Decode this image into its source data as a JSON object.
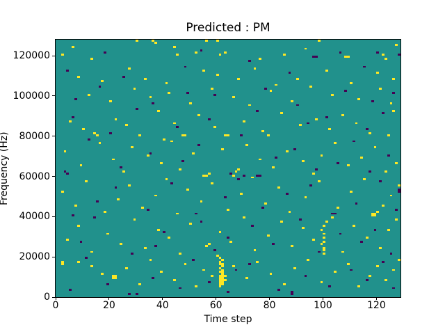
{
  "title": "Predicted : PM",
  "chart_data": {
    "type": "heatmap",
    "title": "Predicted : PM",
    "xlabel": "Time step",
    "ylabel": "Frequency (Hz)",
    "xlim": [
      0,
      129
    ],
    "ylim": [
      0,
      128000
    ],
    "x_ticks": [
      0,
      20,
      40,
      60,
      80,
      100,
      120
    ],
    "y_ticks": [
      0,
      20000,
      40000,
      60000,
      80000,
      100000,
      120000
    ],
    "freq_bin_hz": 1000,
    "grid": "off",
    "legend": "none",
    "colors": {
      "background": "#21918c",
      "high": "#fde725",
      "low": "#440154",
      "axes_text": "#000000"
    },
    "high_cells": [
      [
        2,
        120
      ],
      [
        6,
        124
      ],
      [
        13,
        118
      ],
      [
        30,
        127
      ],
      [
        36,
        127
      ],
      [
        37,
        126
      ],
      [
        44,
        124
      ],
      [
        45,
        120
      ],
      [
        52,
        121
      ],
      [
        56,
        127
      ],
      [
        60,
        127
      ],
      [
        61,
        120
      ],
      [
        63,
        121
      ],
      [
        76,
        118
      ],
      [
        85,
        120
      ],
      [
        93,
        123
      ],
      [
        98,
        127
      ],
      [
        108,
        119
      ],
      [
        109,
        119
      ],
      [
        122,
        120
      ],
      [
        123,
        118
      ],
      [
        127,
        125
      ],
      [
        8,
        109
      ],
      [
        17,
        107
      ],
      [
        27,
        113
      ],
      [
        33,
        108
      ],
      [
        41,
        106
      ],
      [
        55,
        112
      ],
      [
        60,
        110
      ],
      [
        68,
        108
      ],
      [
        74,
        113
      ],
      [
        82,
        105
      ],
      [
        90,
        108
      ],
      [
        101,
        112
      ],
      [
        110,
        106
      ],
      [
        120,
        111
      ],
      [
        126,
        108
      ],
      [
        12,
        100
      ],
      [
        20,
        97
      ],
      [
        29,
        103
      ],
      [
        35,
        99
      ],
      [
        42,
        101
      ],
      [
        50,
        96
      ],
      [
        58,
        103
      ],
      [
        66,
        99
      ],
      [
        72,
        95
      ],
      [
        80,
        102
      ],
      [
        88,
        97
      ],
      [
        95,
        104
      ],
      [
        103,
        100
      ],
      [
        113,
        98
      ],
      [
        121,
        103
      ],
      [
        125,
        96
      ],
      [
        5,
        87
      ],
      [
        10,
        83
      ],
      [
        14,
        81
      ],
      [
        15,
        80
      ],
      [
        22,
        88
      ],
      [
        26,
        85
      ],
      [
        31,
        80
      ],
      [
        38,
        92
      ],
      [
        40,
        78
      ],
      [
        44,
        86
      ],
      [
        47,
        80
      ],
      [
        48,
        80
      ],
      [
        53,
        90
      ],
      [
        59,
        84
      ],
      [
        63,
        80
      ],
      [
        64,
        80
      ],
      [
        70,
        87
      ],
      [
        77,
        82
      ],
      [
        79,
        80
      ],
      [
        84,
        91
      ],
      [
        91,
        85
      ],
      [
        97,
        88
      ],
      [
        102,
        83
      ],
      [
        107,
        90
      ],
      [
        112,
        86
      ],
      [
        117,
        81
      ],
      [
        124,
        80
      ],
      [
        126,
        92
      ],
      [
        3,
        72
      ],
      [
        9,
        65
      ],
      [
        16,
        76
      ],
      [
        21,
        68
      ],
      [
        25,
        62
      ],
      [
        28,
        74
      ],
      [
        34,
        70
      ],
      [
        39,
        66
      ],
      [
        43,
        77
      ],
      [
        46,
        63
      ],
      [
        51,
        71
      ],
      [
        55,
        60
      ],
      [
        56,
        60
      ],
      [
        57,
        61
      ],
      [
        62,
        73
      ],
      [
        66,
        60
      ],
      [
        67,
        62
      ],
      [
        68,
        63
      ],
      [
        71,
        75
      ],
      [
        76,
        68
      ],
      [
        81,
        64
      ],
      [
        86,
        72
      ],
      [
        92,
        67
      ],
      [
        96,
        61
      ],
      [
        99,
        70
      ],
      [
        104,
        76
      ],
      [
        109,
        65
      ],
      [
        114,
        69
      ],
      [
        119,
        74
      ],
      [
        123,
        62
      ],
      [
        127,
        66
      ],
      [
        2,
        52
      ],
      [
        7,
        45
      ],
      [
        11,
        57
      ],
      [
        18,
        42
      ],
      [
        23,
        48
      ],
      [
        27,
        55
      ],
      [
        32,
        44
      ],
      [
        37,
        50
      ],
      [
        41,
        58
      ],
      [
        45,
        41
      ],
      [
        49,
        53
      ],
      [
        54,
        47
      ],
      [
        58,
        56
      ],
      [
        64,
        43
      ],
      [
        69,
        51
      ],
      [
        73,
        59
      ],
      [
        78,
        46
      ],
      [
        83,
        54
      ],
      [
        87,
        42
      ],
      [
        93,
        49
      ],
      [
        98,
        57
      ],
      [
        105,
        44
      ],
      [
        110,
        52
      ],
      [
        115,
        58
      ],
      [
        118,
        40
      ],
      [
        118,
        41
      ],
      [
        119,
        40
      ],
      [
        119,
        41
      ],
      [
        120,
        42
      ],
      [
        122,
        45
      ],
      [
        125,
        50
      ],
      [
        128,
        55
      ],
      [
        4,
        28
      ],
      [
        8,
        35
      ],
      [
        13,
        22
      ],
      [
        19,
        31
      ],
      [
        24,
        26
      ],
      [
        29,
        38
      ],
      [
        33,
        24
      ],
      [
        38,
        33
      ],
      [
        42,
        29
      ],
      [
        46,
        21
      ],
      [
        50,
        36
      ],
      [
        56,
        25
      ],
      [
        57,
        26
      ],
      [
        61,
        32
      ],
      [
        65,
        27
      ],
      [
        70,
        39
      ],
      [
        74,
        23
      ],
      [
        79,
        30
      ],
      [
        84,
        37
      ],
      [
        88,
        25
      ],
      [
        92,
        34
      ],
      [
        96,
        28
      ],
      [
        99,
        26
      ],
      [
        99,
        33
      ],
      [
        100,
        21
      ],
      [
        100,
        23
      ],
      [
        100,
        24
      ],
      [
        100,
        27
      ],
      [
        100,
        29
      ],
      [
        100,
        31
      ],
      [
        100,
        35
      ],
      [
        101,
        37
      ],
      [
        103,
        39
      ],
      [
        107,
        22
      ],
      [
        111,
        35
      ],
      [
        116,
        29
      ],
      [
        121,
        24
      ],
      [
        124,
        33
      ],
      [
        127,
        38
      ],
      [
        2,
        16
      ],
      [
        2,
        17
      ],
      [
        8,
        17
      ],
      [
        13,
        15
      ],
      [
        17,
        11
      ],
      [
        21,
        9
      ],
      [
        21,
        10
      ],
      [
        22,
        9
      ],
      [
        22,
        10
      ],
      [
        26,
        14
      ],
      [
        31,
        6
      ],
      [
        35,
        18
      ],
      [
        39,
        12
      ],
      [
        44,
        8
      ],
      [
        48,
        16
      ],
      [
        52,
        5
      ],
      [
        55,
        13
      ],
      [
        58,
        10
      ],
      [
        60,
        20
      ],
      [
        61,
        5
      ],
      [
        61,
        6
      ],
      [
        61,
        7
      ],
      [
        61,
        8
      ],
      [
        61,
        9
      ],
      [
        61,
        10
      ],
      [
        61,
        12
      ],
      [
        61,
        14
      ],
      [
        61,
        16
      ],
      [
        61,
        17
      ],
      [
        61,
        19
      ],
      [
        62,
        6
      ],
      [
        62,
        7
      ],
      [
        62,
        8
      ],
      [
        62,
        9
      ],
      [
        62,
        10
      ],
      [
        62,
        11
      ],
      [
        62,
        12
      ],
      [
        62,
        13
      ],
      [
        62,
        15
      ],
      [
        62,
        16
      ],
      [
        62,
        18
      ],
      [
        63,
        8
      ],
      [
        63,
        10
      ],
      [
        66,
        15
      ],
      [
        71,
        9
      ],
      [
        75,
        17
      ],
      [
        80,
        11
      ],
      [
        85,
        6
      ],
      [
        89,
        14
      ],
      [
        94,
        18
      ],
      [
        99,
        7
      ],
      [
        104,
        12
      ],
      [
        109,
        16
      ],
      [
        113,
        5
      ],
      [
        117,
        10
      ],
      [
        120,
        15
      ],
      [
        123,
        8
      ],
      [
        126,
        13
      ],
      [
        128,
        18
      ]
    ],
    "low_cells": [
      [
        96,
        119
      ],
      [
        97,
        119
      ],
      [
        4,
        112
      ],
      [
        18,
        121
      ],
      [
        25,
        109
      ],
      [
        48,
        114
      ],
      [
        54,
        122
      ],
      [
        72,
        117
      ],
      [
        87,
        111
      ],
      [
        106,
        121
      ],
      [
        115,
        114
      ],
      [
        120,
        121
      ],
      [
        128,
        120
      ],
      [
        7,
        98
      ],
      [
        16,
        104
      ],
      [
        36,
        96
      ],
      [
        49,
        101
      ],
      [
        59,
        100
      ],
      [
        78,
        103
      ],
      [
        90,
        95
      ],
      [
        108,
        102
      ],
      [
        118,
        97
      ],
      [
        126,
        101
      ],
      [
        6,
        89
      ],
      [
        20,
        81
      ],
      [
        30,
        93
      ],
      [
        45,
        84
      ],
      [
        57,
        88
      ],
      [
        69,
        80
      ],
      [
        75,
        92
      ],
      [
        94,
        86
      ],
      [
        101,
        89
      ],
      [
        116,
        83
      ],
      [
        122,
        91
      ],
      [
        3,
        62
      ],
      [
        4,
        61
      ],
      [
        12,
        78
      ],
      [
        24,
        64
      ],
      [
        35,
        71
      ],
      [
        47,
        67
      ],
      [
        53,
        75
      ],
      [
        65,
        61
      ],
      [
        70,
        60
      ],
      [
        75,
        60
      ],
      [
        76,
        60
      ],
      [
        82,
        69
      ],
      [
        89,
        73
      ],
      [
        97,
        63
      ],
      [
        105,
        66
      ],
      [
        111,
        77
      ],
      [
        117,
        62
      ],
      [
        124,
        70
      ],
      [
        128,
        52
      ],
      [
        128,
        53
      ],
      [
        6,
        40
      ],
      [
        15,
        47
      ],
      [
        22,
        54
      ],
      [
        34,
        43
      ],
      [
        43,
        56
      ],
      [
        52,
        41
      ],
      [
        63,
        49
      ],
      [
        68,
        58
      ],
      [
        77,
        44
      ],
      [
        86,
        51
      ],
      [
        95,
        55
      ],
      [
        103,
        41
      ],
      [
        104,
        41
      ],
      [
        112,
        46
      ],
      [
        121,
        57
      ],
      [
        127,
        43
      ],
      [
        9,
        27
      ],
      [
        14,
        39
      ],
      [
        28,
        21
      ],
      [
        37,
        25
      ],
      [
        40,
        32
      ],
      [
        54,
        37
      ],
      [
        59,
        23
      ],
      [
        64,
        29
      ],
      [
        73,
        35
      ],
      [
        81,
        26
      ],
      [
        91,
        38
      ],
      [
        98,
        22
      ],
      [
        106,
        31
      ],
      [
        114,
        27
      ],
      [
        119,
        33
      ],
      [
        125,
        21
      ],
      [
        5,
        3
      ],
      [
        11,
        19
      ],
      [
        19,
        6
      ],
      [
        27,
        1
      ],
      [
        30,
        1
      ],
      [
        36,
        9
      ],
      [
        46,
        4
      ],
      [
        51,
        18
      ],
      [
        57,
        7
      ],
      [
        64,
        2
      ],
      [
        67,
        13
      ],
      [
        72,
        16
      ],
      [
        83,
        3
      ],
      [
        88,
        1
      ],
      [
        88,
        2
      ],
      [
        93,
        10
      ],
      [
        102,
        5
      ],
      [
        110,
        13
      ],
      [
        116,
        8
      ],
      [
        122,
        17
      ],
      [
        126,
        4
      ]
    ]
  }
}
